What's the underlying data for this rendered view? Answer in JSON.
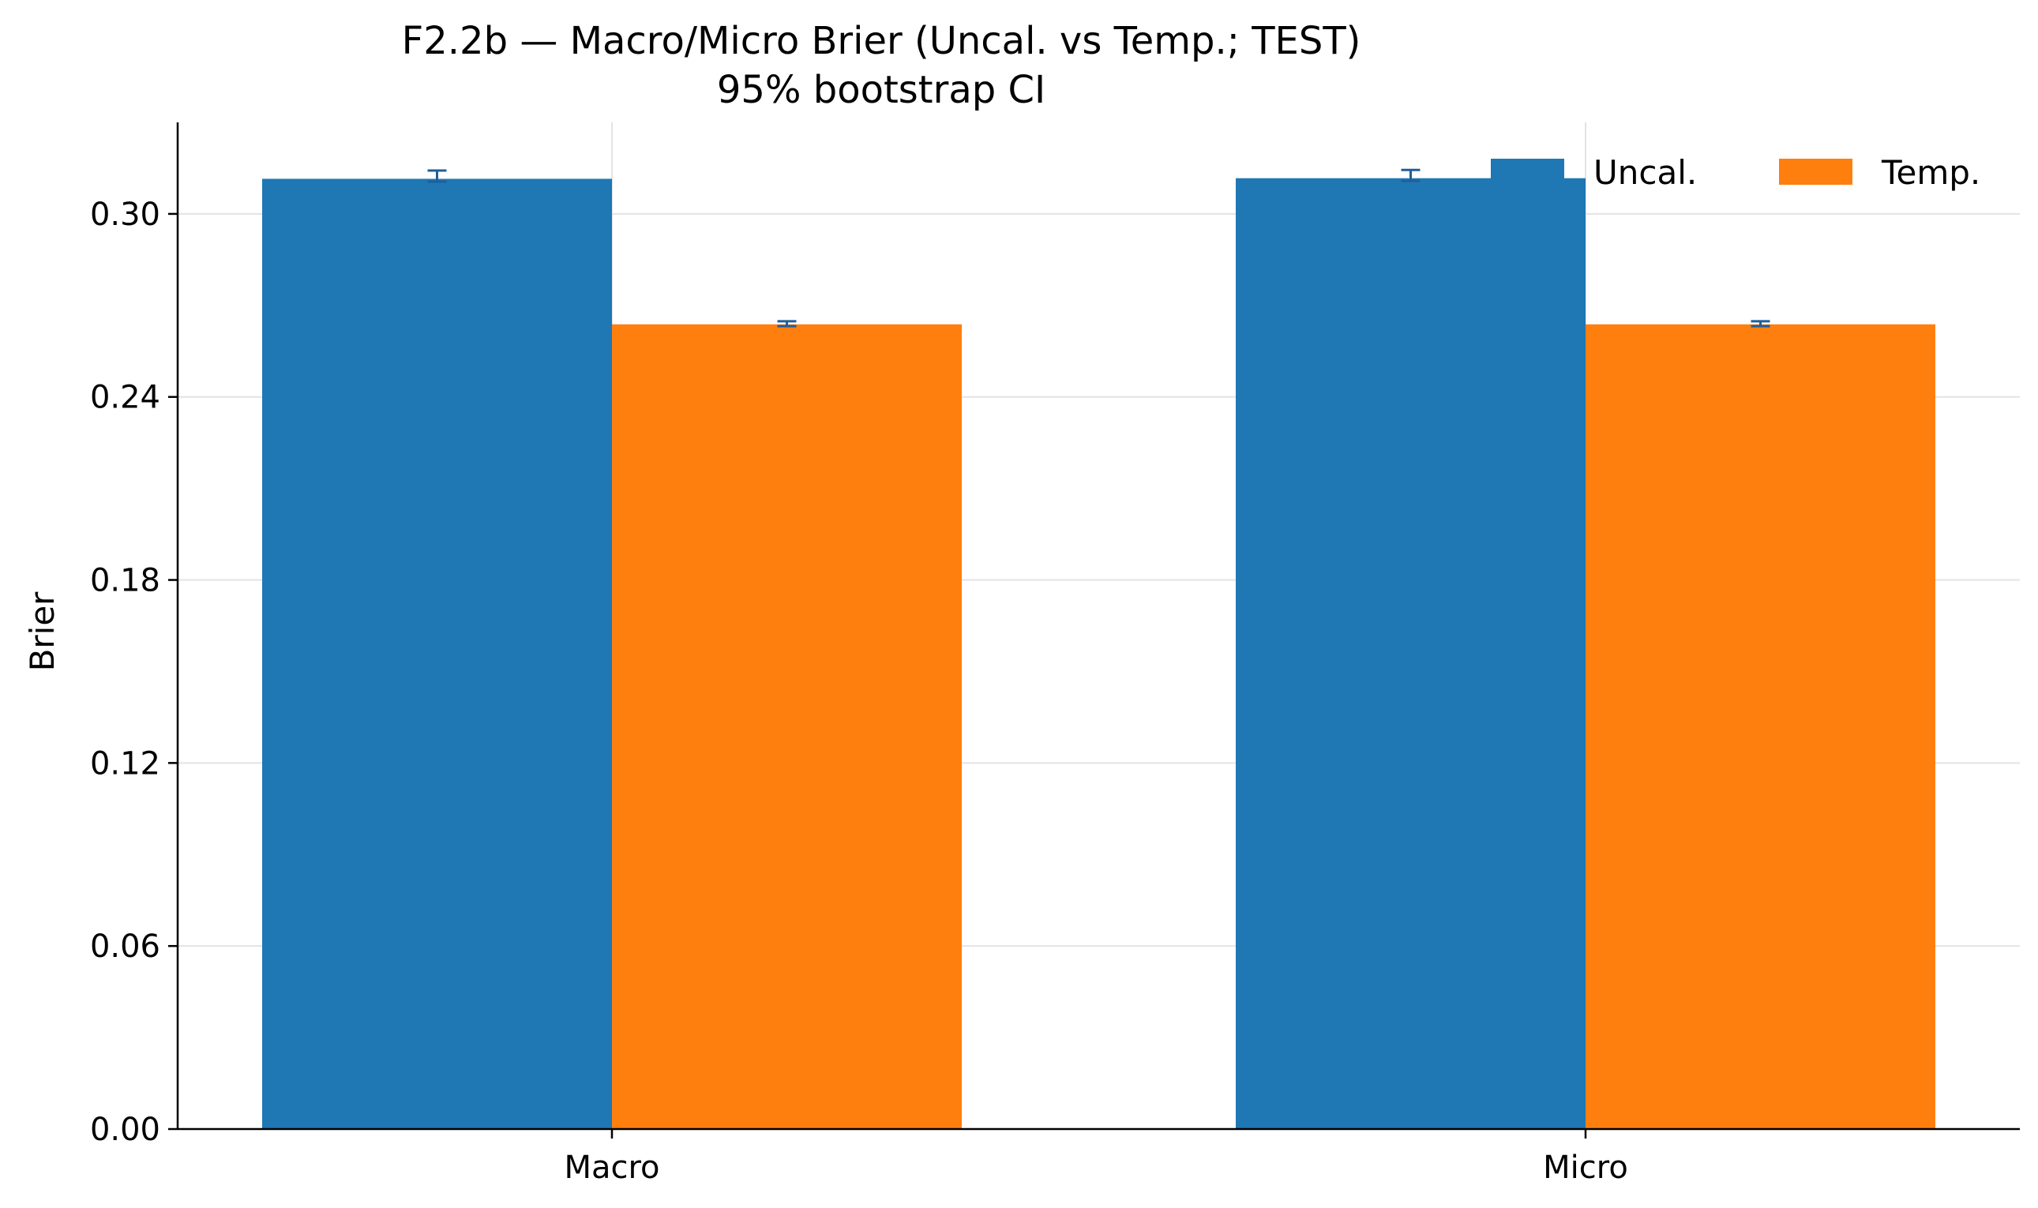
{
  "chart_data": {
    "type": "bar",
    "title": "F2.2b — Macro/Micro Brier (Uncal. vs Temp.; TEST)",
    "subtitle": "95% bootstrap CI",
    "xlabel": "",
    "ylabel": "Brier",
    "categories": [
      "Macro",
      "Micro"
    ],
    "ylim": [
      0,
      0.33
    ],
    "yticks": [
      0.0,
      0.06,
      0.12,
      0.18,
      0.24,
      0.3
    ],
    "ytick_labels": [
      "0.00",
      "0.06",
      "0.12",
      "0.18",
      "0.24",
      "0.30"
    ],
    "grid": true,
    "legend_position": "top-right",
    "series": [
      {
        "name": "Uncal.",
        "color": "#1f77b4",
        "values": [
          0.3115,
          0.3117
        ],
        "ci_low": [
          0.3106,
          0.3108
        ],
        "ci_high": [
          0.3142,
          0.3144
        ]
      },
      {
        "name": "Temp.",
        "color": "#ff7f0e",
        "values": [
          0.2638,
          0.2638
        ],
        "ci_low": [
          0.2632,
          0.2632
        ],
        "ci_high": [
          0.2648,
          0.2648
        ]
      }
    ]
  }
}
